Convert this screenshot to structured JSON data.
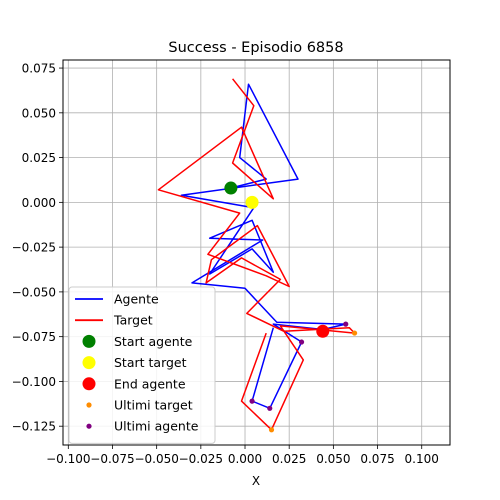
{
  "chart_data": {
    "type": "line",
    "title": "Success - Episodio 6858",
    "xlabel": "X",
    "ylabel": "",
    "xlim": [
      -0.103,
      0.116
    ],
    "ylim": [
      -0.1355,
      0.0795
    ],
    "xticks": [
      -0.1,
      -0.075,
      -0.05,
      -0.025,
      0.0,
      0.025,
      0.05,
      0.075,
      0.1
    ],
    "xtick_labels": [
      "−0.100",
      "−0.075",
      "−0.050",
      "−0.025",
      "0.000",
      "0.025",
      "0.050",
      "0.075",
      "0.100"
    ],
    "yticks": [
      -0.125,
      -0.1,
      -0.075,
      -0.05,
      -0.025,
      0.0,
      0.025,
      0.05,
      0.075
    ],
    "ytick_labels": [
      "−0.125",
      "−0.100",
      "−0.075",
      "−0.050",
      "−0.025",
      "0.000",
      "0.025",
      "0.050",
      "0.075"
    ],
    "grid": true,
    "legend_placement": "lower-left",
    "series": [
      {
        "name": "Agente",
        "color": "#0000ff",
        "points": [
          [
            -0.008,
            0.008
          ],
          [
            0.012,
            0.013
          ],
          [
            -0.003,
            0.025
          ],
          [
            0.002,
            0.066
          ],
          [
            0.03,
            0.013
          ],
          [
            -0.036,
            0.004
          ],
          [
            0.005,
            -0.003
          ],
          [
            -0.02,
            -0.04
          ],
          [
            0.004,
            -0.026
          ],
          [
            0.016,
            -0.039
          ],
          [
            0.004,
            -0.01
          ],
          [
            -0.02,
            -0.02
          ],
          [
            0.01,
            -0.021
          ],
          [
            -0.03,
            -0.045
          ],
          [
            0.0,
            -0.048
          ],
          [
            0.018,
            -0.067
          ],
          [
            0.057,
            -0.068
          ],
          [
            0.044,
            -0.071
          ],
          [
            0.016,
            -0.068
          ],
          [
            0.032,
            -0.078
          ],
          [
            0.014,
            -0.115
          ],
          [
            0.004,
            -0.111
          ],
          [
            0.016,
            -0.07
          ]
        ]
      },
      {
        "name": "Target",
        "color": "#ff0000",
        "points": [
          [
            -0.007,
            0.069
          ],
          [
            0.005,
            0.054
          ],
          [
            -0.007,
            0.022
          ],
          [
            0.016,
            0.002
          ],
          [
            -0.002,
            0.042
          ],
          [
            -0.049,
            0.007
          ],
          [
            -0.003,
            -0.006
          ],
          [
            -0.021,
            -0.029
          ],
          [
            0.012,
            -0.041
          ],
          [
            0.025,
            -0.047
          ],
          [
            0.007,
            -0.013
          ],
          [
            -0.019,
            -0.032
          ],
          [
            -0.022,
            -0.045
          ],
          [
            -0.002,
            -0.031
          ],
          [
            0.02,
            -0.043
          ],
          [
            0.001,
            -0.062
          ],
          [
            0.022,
            -0.072
          ],
          [
            0.059,
            -0.07
          ],
          [
            0.062,
            -0.073
          ],
          [
            0.02,
            -0.069
          ],
          [
            0.033,
            -0.088
          ],
          [
            0.015,
            -0.127
          ],
          [
            -0.002,
            -0.111
          ],
          [
            0.012,
            -0.073
          ]
        ]
      }
    ],
    "markers": [
      {
        "name": "Start agente",
        "color": "#008000",
        "x": -0.008,
        "y": 0.008,
        "size": "large"
      },
      {
        "name": "Start target",
        "color": "#ffff00",
        "x": 0.004,
        "y": 0.0,
        "size": "large"
      },
      {
        "name": "End agente",
        "color": "#ff0000",
        "x": 0.044,
        "y": -0.072,
        "size": "large"
      },
      {
        "name": "Ultimi target",
        "color": "#ff8c00",
        "size": "small",
        "points": [
          [
            0.062,
            -0.073
          ],
          [
            0.015,
            -0.127
          ]
        ]
      },
      {
        "name": "Ultimi agente",
        "color": "#800080",
        "size": "small",
        "points": [
          [
            0.057,
            -0.068
          ],
          [
            0.032,
            -0.078
          ],
          [
            0.014,
            -0.115
          ],
          [
            0.004,
            -0.111
          ]
        ]
      }
    ],
    "legend": [
      {
        "label": "Agente",
        "kind": "line",
        "color": "#0000ff"
      },
      {
        "label": "Target",
        "kind": "line",
        "color": "#ff0000"
      },
      {
        "label": "Start agente",
        "kind": "marker",
        "color": "#008000",
        "size": "large"
      },
      {
        "label": "Start target",
        "kind": "marker",
        "color": "#ffff00",
        "size": "large"
      },
      {
        "label": "End agente",
        "kind": "marker",
        "color": "#ff0000",
        "size": "large"
      },
      {
        "label": "Ultimi target",
        "kind": "marker",
        "color": "#ff8c00",
        "size": "small"
      },
      {
        "label": "Ultimi agente",
        "kind": "marker",
        "color": "#800080",
        "size": "small"
      }
    ]
  }
}
